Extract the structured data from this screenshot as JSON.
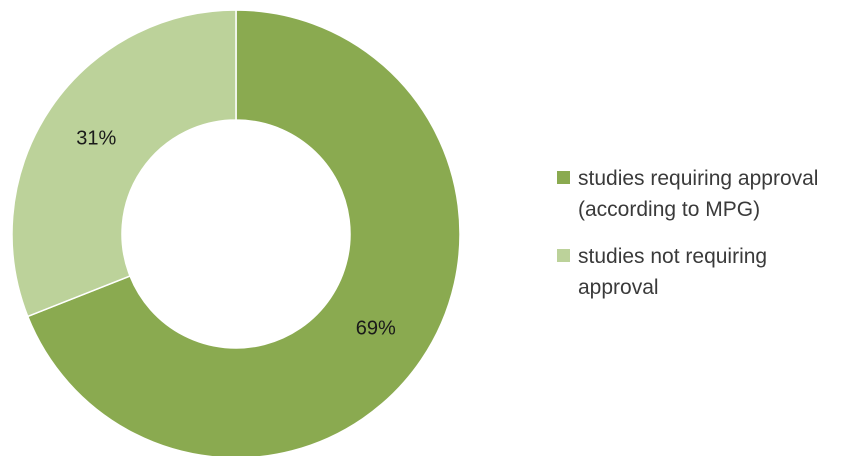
{
  "chart_data": {
    "type": "pie",
    "subtype": "donut",
    "categories": [
      "studies requiring approval (according to MPG)",
      "studies not requiring approval"
    ],
    "values": [
      69,
      31
    ],
    "data_labels": [
      "69%",
      "31%"
    ],
    "colors": [
      "#8aaa50",
      "#bcd29a"
    ],
    "legend": {
      "placement": "right",
      "entries": [
        {
          "lines": [
            "studies requiring approval",
            "(according to MPG)"
          ],
          "color": "#8aaa50"
        },
        {
          "lines": [
            "studies not requiring",
            "approval"
          ],
          "color": "#bcd29a"
        }
      ]
    }
  }
}
